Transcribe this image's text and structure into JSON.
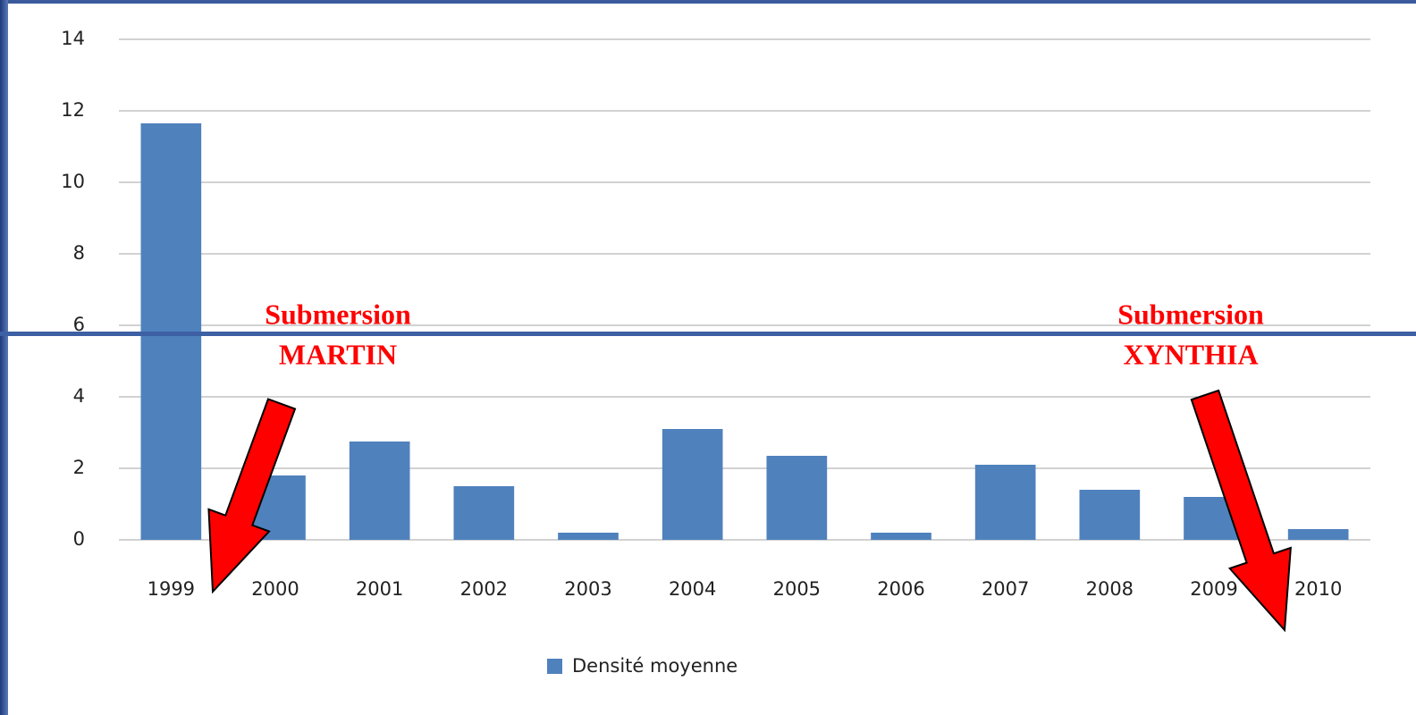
{
  "chart_data": {
    "type": "bar",
    "categories": [
      "1999",
      "2000",
      "2001",
      "2002",
      "2003",
      "2004",
      "2005",
      "2006",
      "2007",
      "2008",
      "2009",
      "2010"
    ],
    "series": [
      {
        "name": "Densité moyenne",
        "color": "#4f81bd",
        "values": [
          11.65,
          1.8,
          2.75,
          1.5,
          0.2,
          3.1,
          2.35,
          0.2,
          2.1,
          1.4,
          1.2,
          0.3
        ]
      }
    ],
    "ylim": [
      0,
      14
    ],
    "yticks": [
      0,
      2,
      4,
      6,
      8,
      10,
      12,
      14
    ],
    "grid": true,
    "legend": "bottom",
    "annotations": [
      {
        "lines": [
          "Submersion",
          "MARTIN"
        ],
        "category": 1
      },
      {
        "lines": [
          "Submersion",
          "XYNTHIA"
        ],
        "category": 10
      }
    ]
  }
}
